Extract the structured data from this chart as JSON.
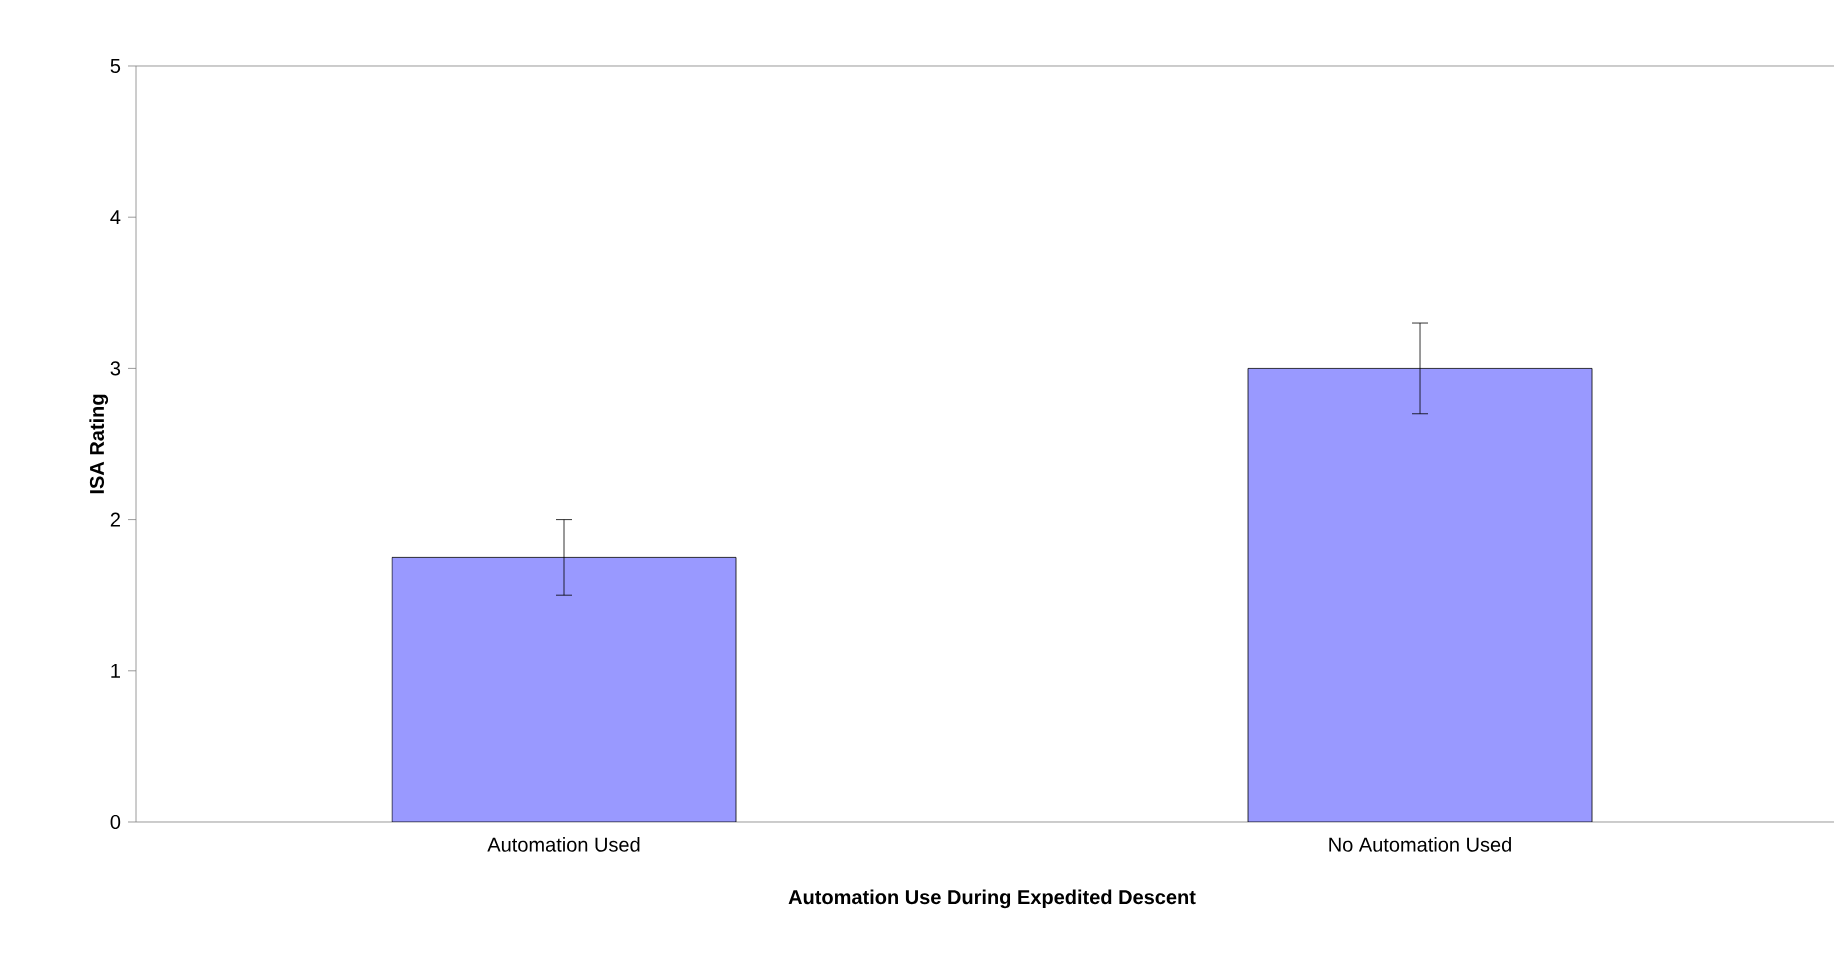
{
  "chart_data": {
    "type": "bar",
    "xlabel": "Automation Use During Expedited Descent",
    "ylabel": "ISA Rating",
    "categories": [
      "Automation Used",
      "No Automation Used"
    ],
    "values": [
      1.75,
      3.0
    ],
    "errors": [
      [
        1.5,
        2.0
      ],
      [
        2.7,
        3.3
      ]
    ],
    "color": "#9999ff",
    "ylim": [
      0,
      5
    ],
    "yticks": [
      0,
      1,
      2,
      3,
      4,
      5
    ],
    "grid": false
  }
}
